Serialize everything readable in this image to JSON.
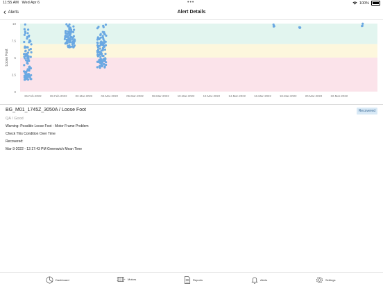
{
  "status_bar": {
    "time": "11:55 AM",
    "date": "Wed Apr 6",
    "battery": "100%"
  },
  "nav": {
    "back_label": "Alerts",
    "title": "Alert Details"
  },
  "chart_data": {
    "type": "scatter",
    "ylabel": "Loose Foot",
    "ylim": [
      0,
      10
    ],
    "yticks": [
      "0",
      "2.5",
      "5",
      "7.5",
      "10"
    ],
    "xticks": [
      "26-Feb-2022",
      "28-Feb-2022",
      "02-Mar-2022",
      "04-Mar-2022",
      "06-Mar-2022",
      "08-Mar-2022",
      "10-Mar-2022",
      "12-Mar-2022",
      "14-Mar-2022",
      "16-Mar-2022",
      "18-Mar-2022",
      "20-Mar-2022",
      "22-Mar-2022"
    ],
    "bands": [
      {
        "from": 0,
        "to": 5,
        "color": "#fbe3ea"
      },
      {
        "from": 5,
        "to": 7,
        "color": "#fdf7dd"
      },
      {
        "from": 7,
        "to": 10,
        "color": "#e2f5ef"
      }
    ],
    "point_color": "#6aa8e2",
    "clusters": [
      {
        "x": 25.6,
        "spread": 0.3,
        "ymin": 1.7,
        "ymax": 10,
        "count": 90
      },
      {
        "x": 28.9,
        "spread": 0.4,
        "ymin": 6.5,
        "ymax": 10,
        "count": 80
      },
      {
        "x": 31.4,
        "spread": 0.35,
        "ymin": 3.5,
        "ymax": 10,
        "count": 110
      },
      {
        "x": 44.9,
        "spread": 0.05,
        "ymin": 9.5,
        "ymax": 10,
        "count": 4
      },
      {
        "x": 46.9,
        "spread": 0.05,
        "ymin": 9.3,
        "ymax": 10,
        "count": 4
      },
      {
        "x": 51.8,
        "spread": 0.05,
        "ymin": 9.6,
        "ymax": 10,
        "count": 3
      }
    ]
  },
  "alert": {
    "title": "BG_M01_1745Z_3050A / Loose Foot",
    "badge": "Recovered",
    "subtitle": "QA / Good",
    "warning": "Warning: Possible Loose Foot - Motor Frame Problem",
    "instruction": "Check This Condition Over Time",
    "recovered_label": "Recovered:",
    "recovered_time": "Mar-3-2022 - 12:17:43 PM Greenwich Mean Time"
  },
  "tabs": [
    {
      "label": "Dashboard",
      "icon": "pie-chart-icon"
    },
    {
      "label": "Motors",
      "icon": "motor-icon"
    },
    {
      "label": "Reports",
      "icon": "document-icon"
    },
    {
      "label": "Alerts",
      "icon": "bell-icon"
    },
    {
      "label": "Settings",
      "icon": "gear-icon"
    }
  ]
}
